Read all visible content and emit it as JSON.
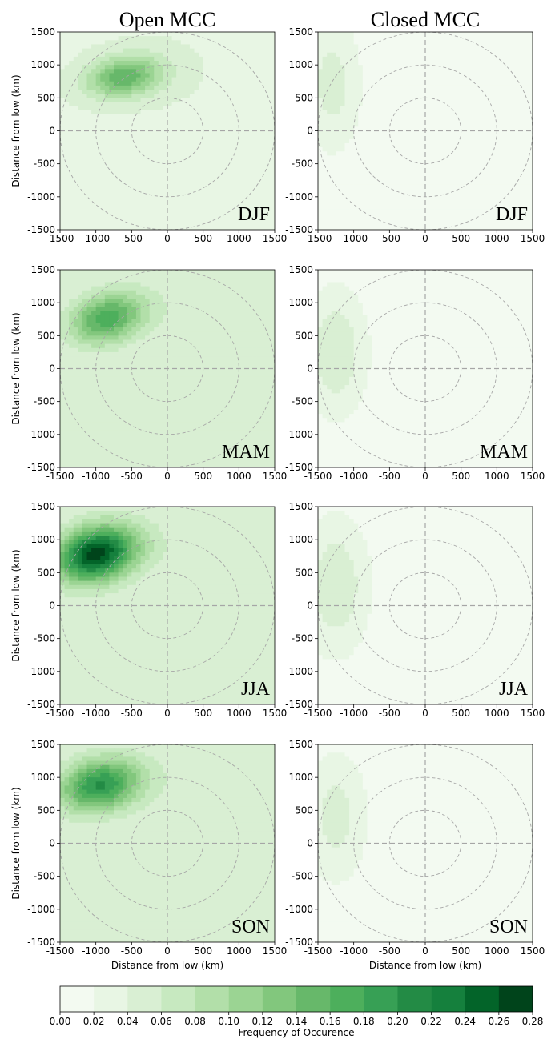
{
  "chart_data": {
    "type": "heatmap",
    "column_titles": [
      "Open MCC",
      "Closed MCC"
    ],
    "row_labels": [
      "DJF",
      "MAM",
      "JJA",
      "SON"
    ],
    "xlabel": "Distance from low (km)",
    "ylabel": "Distance from low (km)",
    "xlim": [
      -1500,
      1500
    ],
    "ylim": [
      -1500,
      1500
    ],
    "xticks": [
      -1500,
      -1000,
      -500,
      0,
      500,
      1000,
      1500
    ],
    "yticks": [
      -1500,
      -1000,
      -500,
      0,
      500,
      1000,
      1500
    ],
    "reference_circle_radii_km": [
      500,
      1000,
      1500
    ],
    "colorbar": {
      "label": "Frequency of Occurence",
      "levels": [
        0.0,
        0.02,
        0.04,
        0.06,
        0.08,
        0.1,
        0.12,
        0.14,
        0.16,
        0.18,
        0.2,
        0.22,
        0.24,
        0.26,
        0.28
      ],
      "tick_labels": [
        "0.00",
        "0.02",
        "0.04",
        "0.06",
        "0.08",
        "0.10",
        "0.12",
        "0.14",
        "0.16",
        "0.18",
        "0.20",
        "0.22",
        "0.24",
        "0.26",
        "0.28"
      ],
      "colors": [
        "#f3faf1",
        "#e8f6e4",
        "#d9efd3",
        "#c7e9c0",
        "#b2dfa9",
        "#9bd493",
        "#82c77d",
        "#67b86a",
        "#4daf5c",
        "#37a055",
        "#238b45",
        "#15803d",
        "#036429",
        "#00441b"
      ]
    },
    "panels": [
      {
        "column": "Open MCC",
        "season": "DJF",
        "max_center_km": [
          -620,
          820
        ],
        "spread_km": [
          520,
          300
        ],
        "peak_value": 0.15,
        "background": 0.035,
        "tilt_deg": 10
      },
      {
        "column": "Open MCC",
        "season": "MAM",
        "max_center_km": [
          -850,
          760
        ],
        "spread_km": [
          520,
          360
        ],
        "peak_value": 0.17,
        "background": 0.04,
        "tilt_deg": 20
      },
      {
        "column": "Open MCC",
        "season": "JJA",
        "max_center_km": [
          -1000,
          780
        ],
        "spread_km": [
          560,
          400
        ],
        "peak_value": 0.27,
        "background": 0.04,
        "tilt_deg": 20
      },
      {
        "column": "Open MCC",
        "season": "SON",
        "max_center_km": [
          -950,
          880
        ],
        "spread_km": [
          560,
          380
        ],
        "peak_value": 0.2,
        "background": 0.04,
        "tilt_deg": 15
      },
      {
        "column": "Closed MCC",
        "season": "DJF",
        "max_center_km": [
          -1300,
          700
        ],
        "spread_km": [
          350,
          900
        ],
        "peak_value": 0.05,
        "background": 0.01,
        "tilt_deg": 0
      },
      {
        "column": "Closed MCC",
        "season": "MAM",
        "max_center_km": [
          -1250,
          250
        ],
        "spread_km": [
          380,
          850
        ],
        "peak_value": 0.06,
        "background": 0.01,
        "tilt_deg": 0
      },
      {
        "column": "Closed MCC",
        "season": "JJA",
        "max_center_km": [
          -1250,
          300
        ],
        "spread_km": [
          400,
          900
        ],
        "peak_value": 0.06,
        "background": 0.01,
        "tilt_deg": 0
      },
      {
        "column": "Closed MCC",
        "season": "SON",
        "max_center_km": [
          -1250,
          400
        ],
        "spread_km": [
          380,
          850
        ],
        "peak_value": 0.05,
        "background": 0.01,
        "tilt_deg": 0
      }
    ]
  }
}
